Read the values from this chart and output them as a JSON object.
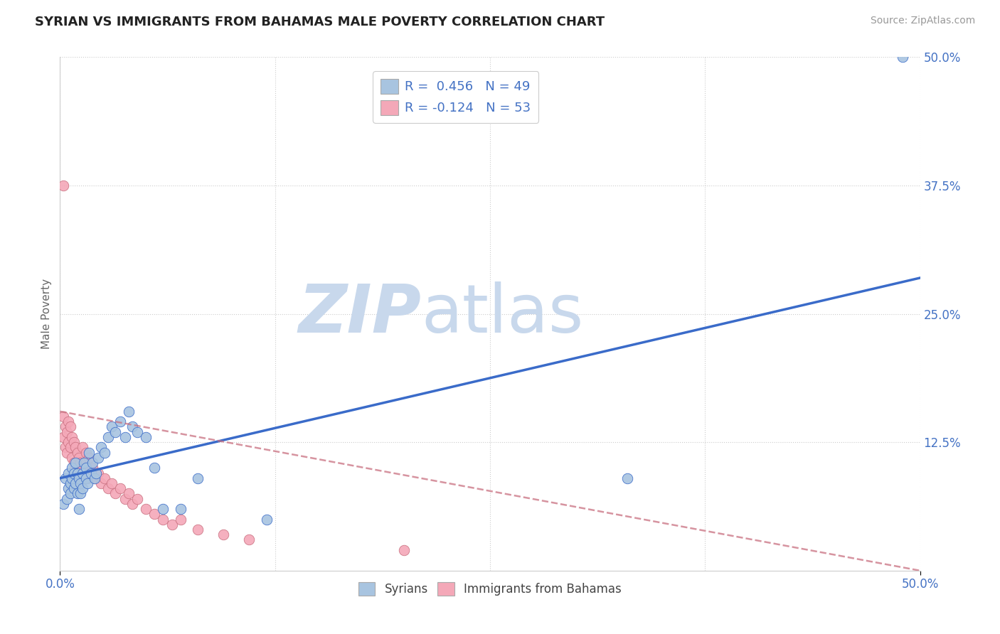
{
  "title": "SYRIAN VS IMMIGRANTS FROM BAHAMAS MALE POVERTY CORRELATION CHART",
  "source": "Source: ZipAtlas.com",
  "ylabel": "Male Poverty",
  "xrange": [
    0,
    0.5
  ],
  "yrange": [
    0,
    0.5
  ],
  "legend1_label": "R =  0.456   N = 49",
  "legend2_label": "R = -0.124   N = 53",
  "legend_syrians": "Syrians",
  "legend_bahamas": "Immigrants from Bahamas",
  "color_syrians": "#a8c4e0",
  "color_bahamas": "#f4a8b8",
  "line_syrians": "#3a6bc9",
  "line_bahamas": "#c97080",
  "watermark_zip": "ZIP",
  "watermark_atlas": "atlas",
  "watermark_color_zip": "#c8d8ec",
  "watermark_color_atlas": "#c8d8ec",
  "background_color": "#ffffff",
  "grid_color": "#cccccc",
  "title_color": "#222222",
  "axis_label_color": "#4472c4",
  "syrians_x": [
    0.002,
    0.003,
    0.004,
    0.005,
    0.005,
    0.006,
    0.006,
    0.007,
    0.007,
    0.008,
    0.008,
    0.009,
    0.009,
    0.01,
    0.01,
    0.011,
    0.011,
    0.012,
    0.012,
    0.013,
    0.013,
    0.014,
    0.015,
    0.015,
    0.016,
    0.017,
    0.018,
    0.019,
    0.02,
    0.021,
    0.022,
    0.024,
    0.026,
    0.028,
    0.03,
    0.032,
    0.035,
    0.038,
    0.04,
    0.042,
    0.045,
    0.05,
    0.055,
    0.06,
    0.07,
    0.08,
    0.12,
    0.33,
    0.49
  ],
  "syrians_y": [
    0.065,
    0.09,
    0.07,
    0.095,
    0.08,
    0.085,
    0.075,
    0.1,
    0.09,
    0.095,
    0.08,
    0.105,
    0.085,
    0.095,
    0.075,
    0.09,
    0.06,
    0.085,
    0.075,
    0.08,
    0.095,
    0.105,
    0.09,
    0.1,
    0.085,
    0.115,
    0.095,
    0.105,
    0.09,
    0.095,
    0.11,
    0.12,
    0.115,
    0.13,
    0.14,
    0.135,
    0.145,
    0.13,
    0.155,
    0.14,
    0.135,
    0.13,
    0.1,
    0.06,
    0.06,
    0.09,
    0.05,
    0.09,
    0.5
  ],
  "bahamas_x": [
    0.002,
    0.002,
    0.003,
    0.003,
    0.004,
    0.004,
    0.005,
    0.005,
    0.006,
    0.006,
    0.007,
    0.007,
    0.008,
    0.008,
    0.009,
    0.009,
    0.01,
    0.01,
    0.011,
    0.011,
    0.012,
    0.012,
    0.013,
    0.013,
    0.014,
    0.015,
    0.015,
    0.016,
    0.017,
    0.018,
    0.019,
    0.02,
    0.022,
    0.024,
    0.026,
    0.028,
    0.03,
    0.032,
    0.035,
    0.038,
    0.04,
    0.042,
    0.045,
    0.05,
    0.055,
    0.06,
    0.065,
    0.07,
    0.08,
    0.095,
    0.11,
    0.2,
    0.002
  ],
  "bahamas_y": [
    0.13,
    0.15,
    0.14,
    0.12,
    0.135,
    0.115,
    0.145,
    0.125,
    0.12,
    0.14,
    0.11,
    0.13,
    0.125,
    0.105,
    0.12,
    0.1,
    0.115,
    0.095,
    0.11,
    0.09,
    0.105,
    0.085,
    0.1,
    0.12,
    0.095,
    0.115,
    0.105,
    0.09,
    0.11,
    0.095,
    0.1,
    0.09,
    0.095,
    0.085,
    0.09,
    0.08,
    0.085,
    0.075,
    0.08,
    0.07,
    0.075,
    0.065,
    0.07,
    0.06,
    0.055,
    0.05,
    0.045,
    0.05,
    0.04,
    0.035,
    0.03,
    0.02,
    0.375
  ],
  "syrians_line_x0": 0.0,
  "syrians_line_x1": 0.5,
  "syrians_line_y0": 0.09,
  "syrians_line_y1": 0.285,
  "bahamas_line_x0": 0.0,
  "bahamas_line_x1": 0.5,
  "bahamas_line_y0": 0.155,
  "bahamas_line_y1": 0.0
}
